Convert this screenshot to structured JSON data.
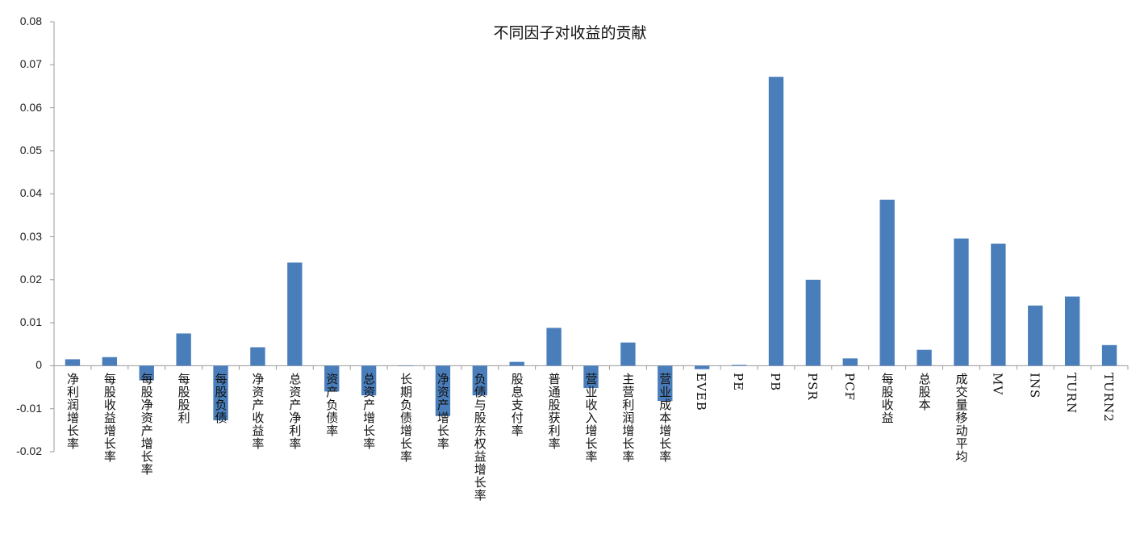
{
  "chart_data": {
    "type": "bar",
    "title": "不同因子对收益的贡献",
    "xlabel": "",
    "ylabel": "",
    "ylim": [
      -0.02,
      0.08
    ],
    "yticks": [
      "0.08",
      "0.07",
      "0.06",
      "0.05",
      "0.04",
      "0.03",
      "0.02",
      "0.01",
      "0",
      "-0.01",
      "-0.02"
    ],
    "grid": false,
    "bar_color": "#4a7ebb",
    "categories": [
      "净利润增长率",
      "每股收益增长率",
      "每股净资产增长率",
      "每股股利",
      "每股负债",
      "净资产收益率",
      "总资产净利率",
      "资产负债率",
      "总资产增长率",
      "长期负债增长率",
      "净资产增长率",
      "负债与股东权益增长率",
      "股息支付率",
      "普通股获利率",
      "营业收入增长率",
      "主营利润增长率",
      "营业成本增长率",
      "EVEB",
      "PE",
      "PB",
      "PSR",
      "PCF",
      "每股收益",
      "总股本",
      "成交量移动平均",
      "MV",
      "INS",
      "TURN",
      "TURN2"
    ],
    "values": [
      0.0015,
      0.002,
      -0.0034,
      0.0075,
      -0.0127,
      0.0043,
      0.024,
      -0.006,
      -0.0069,
      0,
      -0.0117,
      -0.0069,
      0.0009,
      0.0088,
      -0.0052,
      0.0054,
      -0.0082,
      -0.0008,
      0.0002,
      0.0672,
      0.02,
      0.0017,
      0.0386,
      0.0037,
      0.0296,
      0.0284,
      0.014,
      0.0161,
      0.0048
    ]
  }
}
